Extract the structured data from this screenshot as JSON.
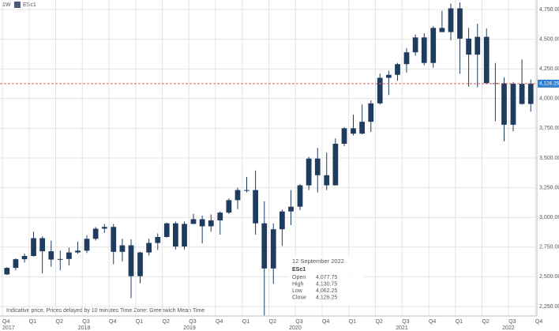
{
  "chart_data": {
    "type": "candlestick",
    "interval": "1W",
    "symbol": "ESc1",
    "xlim": [
      -0.09,
      20.06
    ],
    "xticks": [
      {
        "value": 0,
        "label": "Q4"
      },
      {
        "value": 1,
        "label": "Q1"
      },
      {
        "value": 2,
        "label": "Q2"
      },
      {
        "value": 3,
        "label": "Q3"
      },
      {
        "value": 4,
        "label": "Q4"
      },
      {
        "value": 5,
        "label": "Q1"
      },
      {
        "value": 6,
        "label": "Q2"
      },
      {
        "value": 7,
        "label": "Q3"
      },
      {
        "value": 8,
        "label": "Q4"
      },
      {
        "value": 9,
        "label": "Q1"
      },
      {
        "value": 10,
        "label": "Q2"
      },
      {
        "value": 11,
        "label": "Q3"
      },
      {
        "value": 12,
        "label": "Q4"
      },
      {
        "value": 13,
        "label": "Q1"
      },
      {
        "value": 14,
        "label": "Q2"
      },
      {
        "value": 15,
        "label": "Q3"
      },
      {
        "value": 16,
        "label": "Q4"
      },
      {
        "value": 17,
        "label": "Q1"
      },
      {
        "value": 18,
        "label": "Q2"
      },
      {
        "value": 19,
        "label": "Q3"
      },
      {
        "value": 20,
        "label": "Q4"
      }
    ],
    "xyears": [
      {
        "value": 0,
        "label": "2017"
      },
      {
        "value": 2.84,
        "label": "2018"
      },
      {
        "value": 6.79,
        "label": "2019"
      },
      {
        "value": 10.76,
        "label": "2020"
      },
      {
        "value": 14.76,
        "label": "2021"
      },
      {
        "value": 18.76,
        "label": "2022"
      }
    ],
    "ylim": [
      2170,
      4830
    ],
    "yticks": [
      {
        "value": 2250,
        "label": "2,250.00"
      },
      {
        "value": 2500,
        "label": "2,500.00"
      },
      {
        "value": 2750,
        "label": "2,750.00"
      },
      {
        "value": 3000,
        "label": "3,000.00"
      },
      {
        "value": 3250,
        "label": "3,250.00"
      },
      {
        "value": 3500,
        "label": "3,500.00"
      },
      {
        "value": 3750,
        "label": "3,750.00"
      },
      {
        "value": 4000,
        "label": "4,000.00"
      },
      {
        "value": 4250,
        "label": "4,250.00"
      },
      {
        "value": 4500,
        "label": "4,500.00"
      },
      {
        "value": 4750,
        "label": "4,750.00"
      }
    ],
    "grid": true,
    "color": "#1f3b5e",
    "last_color": "#e05a5a",
    "last_price": {
      "value": 4126.25,
      "label": "4,126.25"
    },
    "x": [
      0.17,
      0.5,
      0.83,
      1.17,
      1.5,
      1.83,
      2.17,
      2.5,
      2.83,
      3.17,
      3.5,
      3.83,
      4.17,
      4.5,
      4.83,
      5.17,
      5.5,
      5.83,
      6.17,
      6.5,
      6.83,
      7.17,
      7.5,
      7.83,
      8.17,
      8.5,
      8.83,
      9.17,
      9.5,
      9.83,
      10.17,
      10.5,
      10.83,
      11.17,
      11.5,
      11.83,
      12.17,
      12.5,
      12.83,
      13.17,
      13.5,
      13.83,
      14.17,
      14.5,
      14.83,
      15.17,
      15.5,
      15.83,
      16.17,
      16.5,
      16.83,
      17.17,
      17.5,
      17.83,
      18.17,
      18.5,
      18.83,
      19.17,
      19.5,
      19.83
    ],
    "open": [
      2520,
      2575,
      2648,
      2675,
      2825,
      2715,
      2645,
      2650,
      2705,
      2720,
      2820,
      2905,
      2920,
      2710,
      2765,
      2505,
      2705,
      2785,
      2835,
      2950,
      2755,
      2945,
      2985,
      2925,
      2975,
      3040,
      3145,
      3230,
      3230,
      2950,
      2570,
      2900,
      3050,
      3090,
      3270,
      3495,
      3355,
      3270,
      3620,
      3750,
      3705,
      3805,
      3960,
      4175,
      4200,
      4290,
      4390,
      4515,
      4300,
      4595,
      4560,
      4760,
      4505,
      4370,
      4520,
      4130,
      4130,
      3780,
      4125,
      3955
    ],
    "high": [
      2580,
      2655,
      2695,
      2880,
      2840,
      2805,
      2720,
      2745,
      2795,
      2850,
      2920,
      2945,
      2945,
      2820,
      2815,
      2710,
      2820,
      2865,
      2955,
      2965,
      2965,
      3030,
      3015,
      3025,
      3050,
      3160,
      3250,
      3340,
      3395,
      3135,
      2950,
      3065,
      3230,
      3280,
      3510,
      3585,
      3545,
      3665,
      3760,
      3865,
      3950,
      3985,
      4210,
      4235,
      4300,
      4425,
      4540,
      4550,
      4610,
      4740,
      4800,
      4810,
      4595,
      4630,
      4590,
      4300,
      4180,
      4140,
      4330,
      4160
    ],
    "low": [
      2515,
      2555,
      2620,
      2670,
      2530,
      2585,
      2555,
      2595,
      2695,
      2700,
      2805,
      2870,
      2605,
      2630,
      2320,
      2445,
      2680,
      2725,
      2830,
      2730,
      2730,
      2950,
      2780,
      2880,
      2855,
      3030,
      3070,
      3210,
      2855,
      2175,
      2440,
      2760,
      2935,
      3060,
      3230,
      3210,
      3230,
      3270,
      3600,
      3690,
      3700,
      3720,
      3950,
      4030,
      4150,
      4220,
      4360,
      4280,
      4260,
      4560,
      4490,
      4210,
      4100,
      4095,
      4125,
      3810,
      3640,
      3725,
      3950,
      3890
    ],
    "close": [
      2575,
      2648,
      2675,
      2825,
      2715,
      2645,
      2650,
      2705,
      2720,
      2820,
      2905,
      2920,
      2710,
      2765,
      2505,
      2705,
      2785,
      2835,
      2950,
      2755,
      2945,
      2985,
      2925,
      2975,
      3040,
      3145,
      3230,
      3230,
      2950,
      2570,
      2900,
      3050,
      3090,
      3270,
      3495,
      3355,
      3270,
      3620,
      3750,
      3705,
      3805,
      3960,
      4175,
      4200,
      4290,
      4390,
      4515,
      4300,
      4595,
      4560,
      4760,
      4505,
      4370,
      4520,
      4130,
      4130,
      3780,
      4125,
      3955,
      4126.25
    ],
    "tooltip": {
      "date": "12 September 2022",
      "symbol": "ESc1",
      "rows": [
        {
          "label": "Open",
          "value": "4,077.75"
        },
        {
          "label": "High",
          "value": "4,130.75"
        },
        {
          "label": "Low",
          "value": "4,062.25"
        },
        {
          "label": "Close",
          "value": "4,126.25"
        }
      ]
    },
    "notes": [
      "Indicative price. Prices delayed by 10 minutes",
      "Time Zone: Greenwich Mean Time"
    ]
  }
}
